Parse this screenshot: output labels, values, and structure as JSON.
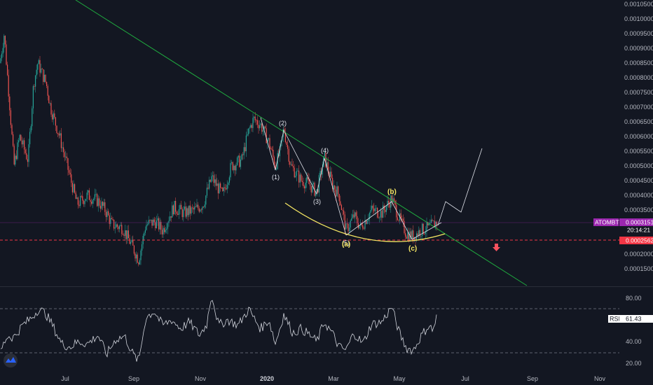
{
  "chart_data": [
    {
      "type": "line",
      "symbol": "ATOMBTC",
      "yaxis_ticks": [
        "0.0010500",
        "0.0010000",
        "0.0009500",
        "0.0009000",
        "0.0008500",
        "0.0008000",
        "0.0007500",
        "0.0007000",
        "0.0006500",
        "0.0006000",
        "0.0005500",
        "0.0005000",
        "0.0004500",
        "0.0004000",
        "0.0003500",
        "0.0003000",
        "0.0002500",
        "0.0002000",
        "0.0001500"
      ],
      "ylim": [
        0.0001,
        0.00107
      ],
      "xaxis_ticks": [
        "Jul",
        "Sep",
        "Nov",
        "2020",
        "Mar",
        "May",
        "Jul",
        "Sep",
        "Nov"
      ],
      "price_series": {
        "x": [
          "2019-05",
          "2019-06",
          "2019-07",
          "2019-08",
          "2019-09",
          "2019-10",
          "2019-11",
          "2019-12",
          "2020-01",
          "2020-02",
          "2020-03",
          "2020-04",
          "2020-05",
          "2020-06"
        ],
        "close": [
          0.00095,
          0.00085,
          0.00048,
          0.00035,
          0.00018,
          0.00036,
          0.00043,
          0.00065,
          0.0005,
          0.00045,
          0.00025,
          0.00038,
          0.00024,
          0.0003151
        ]
      },
      "current_price": {
        "label": "ATOMBTC",
        "value": "0.0003151",
        "countdown": "20:14:21",
        "color": "#9c27b0"
      },
      "horizontal_level": {
        "value": "0.0002562",
        "color": "#f23645"
      },
      "trendline_color": "#1faa3f",
      "arc_color": "#f5e663",
      "wave_labels": [
        "(1)",
        "(2)",
        "(3)",
        "(4)",
        "(5)",
        "(a)",
        "(b)",
        "(c)"
      ],
      "down_arrow_color": "#f7525f"
    },
    {
      "type": "line",
      "name": "RSI",
      "value": "61.43",
      "yaxis_ticks": [
        "80.00",
        "40.00",
        "20.00"
      ],
      "bands": [
        70,
        30
      ],
      "ylim": [
        15,
        90
      ]
    }
  ],
  "colors": {
    "background": "#131722",
    "up": "#26a69a",
    "down": "#ef5350",
    "rsi_line": "#d1d4dc",
    "grid_dash": "#787b86"
  },
  "icons": {
    "logo": "tradingview-logo-icon"
  }
}
